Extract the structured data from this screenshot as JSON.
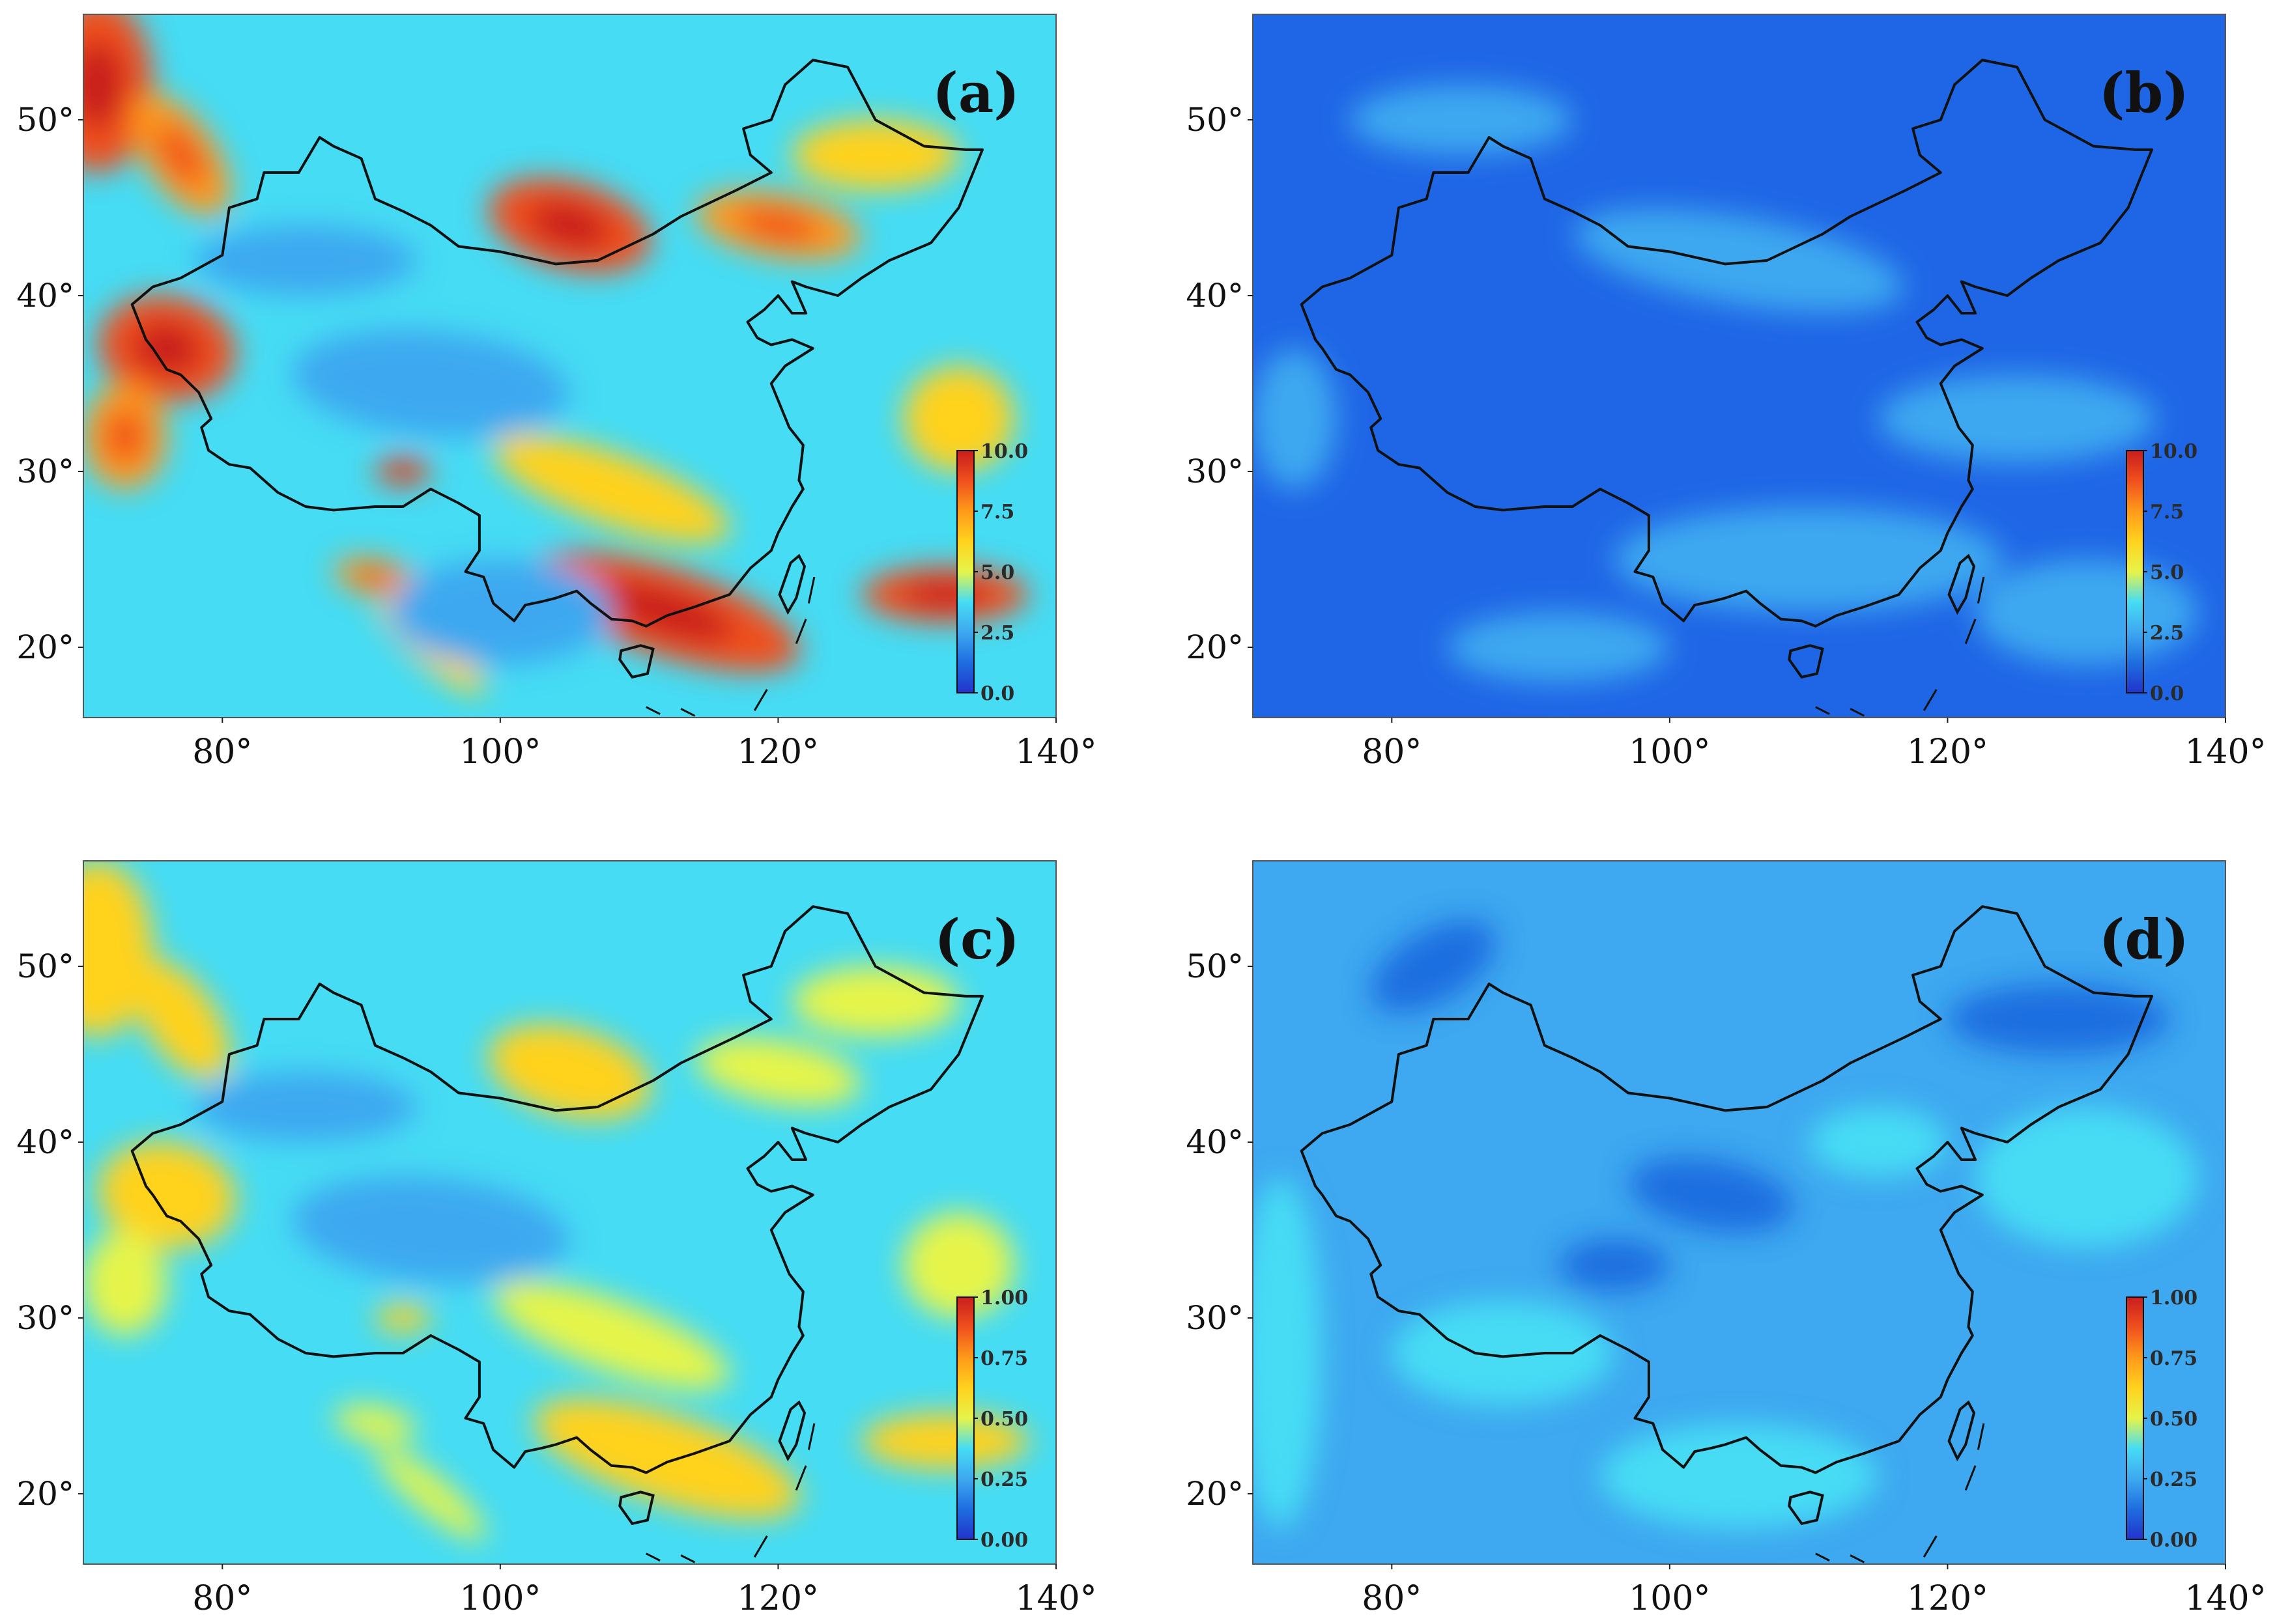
{
  "colors": {
    "scale": [
      "#2233cc",
      "#1e6ee0",
      "#3ea8f0",
      "#46dcf4",
      "#e6f44a",
      "#ffd21e",
      "#ff9a1a",
      "#f0501e",
      "#c81e1e"
    ],
    "background_low": "#1f66e6",
    "border": "#111111"
  },
  "axes": {
    "lon_range": [
      70,
      140
    ],
    "lat_range": [
      16,
      56
    ],
    "xticks": [
      {
        "value": 80,
        "label": "80°"
      },
      {
        "value": 100,
        "label": "100°"
      },
      {
        "value": 120,
        "label": "120°"
      },
      {
        "value": 140,
        "label": "140°"
      }
    ],
    "yticks": [
      {
        "value": 20,
        "label": "20°"
      },
      {
        "value": 30,
        "label": "30°"
      },
      {
        "value": 40,
        "label": "40°"
      },
      {
        "value": 50,
        "label": "50°"
      }
    ]
  },
  "panels": [
    {
      "label": "(a)",
      "base": "#46dcf4",
      "colorbar": {
        "range": [
          0,
          10
        ],
        "ticks": [
          "10.0",
          "7.5",
          "5.0",
          "2.5",
          "0.0"
        ]
      },
      "blobs": [
        {
          "lon": 71,
          "lat": 52,
          "rx": 4,
          "ry": 5,
          "level": 7,
          "angle": 0
        },
        {
          "lon": 77,
          "lat": 48,
          "rx": 2.5,
          "ry": 4,
          "level": 6,
          "angle": 35
        },
        {
          "lon": 76,
          "lat": 37,
          "rx": 5,
          "ry": 3,
          "level": 7,
          "angle": -10
        },
        {
          "lon": 73,
          "lat": 32,
          "rx": 3,
          "ry": 3,
          "level": 6,
          "angle": 0
        },
        {
          "lon": 105,
          "lat": 44,
          "rx": 6,
          "ry": 2.5,
          "level": 7,
          "angle": -15
        },
        {
          "lon": 120,
          "lat": 44,
          "rx": 6,
          "ry": 1.8,
          "level": 6,
          "angle": -10
        },
        {
          "lon": 127,
          "lat": 48,
          "rx": 6,
          "ry": 2,
          "level": 5,
          "angle": 0
        },
        {
          "lon": 108,
          "lat": 29,
          "rx": 9,
          "ry": 2,
          "level": 5,
          "angle": -20
        },
        {
          "lon": 112,
          "lat": 22,
          "rx": 10,
          "ry": 2.5,
          "level": 7,
          "angle": -18
        },
        {
          "lon": 132,
          "lat": 23,
          "rx": 6,
          "ry": 1.6,
          "level": 7,
          "angle": 0
        },
        {
          "lon": 91,
          "lat": 24,
          "rx": 3,
          "ry": 1,
          "level": 6,
          "angle": -10
        },
        {
          "lon": 93,
          "lat": 30,
          "rx": 2,
          "ry": 0.8,
          "level": 7,
          "angle": 0
        },
        {
          "lon": 95,
          "lat": 20,
          "rx": 5,
          "ry": 1,
          "level": 5,
          "angle": -40
        },
        {
          "lon": 133,
          "lat": 33,
          "rx": 4,
          "ry": 3,
          "level": 5,
          "angle": 0
        },
        {
          "lon": 86,
          "lat": 42,
          "rx": 8,
          "ry": 2,
          "level": 2,
          "angle": 0
        },
        {
          "lon": 95,
          "lat": 35,
          "rx": 10,
          "ry": 3,
          "level": 2,
          "angle": -5
        },
        {
          "lon": 100,
          "lat": 22,
          "rx": 8,
          "ry": 3,
          "level": 2,
          "angle": 0
        }
      ]
    },
    {
      "label": "(b)",
      "base": "#1f66e6",
      "colorbar": {
        "range": [
          0,
          10
        ],
        "ticks": [
          "10.0",
          "7.5",
          "5.0",
          "2.5",
          "0.0"
        ]
      },
      "blobs": [
        {
          "lon": 105,
          "lat": 42,
          "rx": 12,
          "ry": 2.5,
          "level": 2,
          "angle": -10
        },
        {
          "lon": 125,
          "lat": 33,
          "rx": 10,
          "ry": 2.5,
          "level": 2,
          "angle": 0
        },
        {
          "lon": 110,
          "lat": 25,
          "rx": 14,
          "ry": 3,
          "level": 2,
          "angle": 0
        },
        {
          "lon": 73,
          "lat": 33,
          "rx": 3,
          "ry": 4,
          "level": 2,
          "angle": 0
        },
        {
          "lon": 85,
          "lat": 50,
          "rx": 8,
          "ry": 2,
          "level": 2,
          "angle": 0
        },
        {
          "lon": 130,
          "lat": 22,
          "rx": 8,
          "ry": 3,
          "level": 2,
          "angle": 0
        },
        {
          "lon": 92,
          "lat": 20,
          "rx": 8,
          "ry": 2,
          "level": 2,
          "angle": 0
        }
      ]
    },
    {
      "label": "(c)",
      "base": "#46dcf4",
      "colorbar": {
        "range": [
          0,
          1
        ],
        "ticks": [
          "1.00",
          "0.75",
          "0.50",
          "0.25",
          "0.00"
        ]
      },
      "blobs": [
        {
          "lon": 71,
          "lat": 51,
          "rx": 4,
          "ry": 5,
          "level": 5,
          "angle": 0
        },
        {
          "lon": 77,
          "lat": 47,
          "rx": 2.5,
          "ry": 4,
          "level": 5,
          "angle": 35
        },
        {
          "lon": 76,
          "lat": 37,
          "rx": 5,
          "ry": 3,
          "level": 5,
          "angle": -10
        },
        {
          "lon": 73,
          "lat": 32,
          "rx": 3,
          "ry": 3,
          "level": 4,
          "angle": 0
        },
        {
          "lon": 105,
          "lat": 44,
          "rx": 6,
          "ry": 2.5,
          "level": 5,
          "angle": -15
        },
        {
          "lon": 120,
          "lat": 44,
          "rx": 6,
          "ry": 1.8,
          "level": 4,
          "angle": -10
        },
        {
          "lon": 127,
          "lat": 48,
          "rx": 6,
          "ry": 2,
          "level": 4,
          "angle": 0
        },
        {
          "lon": 108,
          "lat": 29,
          "rx": 9,
          "ry": 2,
          "level": 4,
          "angle": -20
        },
        {
          "lon": 112,
          "lat": 22,
          "rx": 10,
          "ry": 2.5,
          "level": 5,
          "angle": -18
        },
        {
          "lon": 132,
          "lat": 23,
          "rx": 6,
          "ry": 1.6,
          "level": 5,
          "angle": 0
        },
        {
          "lon": 91,
          "lat": 24,
          "rx": 3,
          "ry": 1,
          "level": 4,
          "angle": -10
        },
        {
          "lon": 93,
          "lat": 30,
          "rx": 2,
          "ry": 0.8,
          "level": 5,
          "angle": 0
        },
        {
          "lon": 95,
          "lat": 20,
          "rx": 5,
          "ry": 1,
          "level": 4,
          "angle": -40
        },
        {
          "lon": 133,
          "lat": 33,
          "rx": 4,
          "ry": 3,
          "level": 4,
          "angle": 0
        },
        {
          "lon": 86,
          "lat": 42,
          "rx": 8,
          "ry": 2,
          "level": 2,
          "angle": 0
        },
        {
          "lon": 95,
          "lat": 35,
          "rx": 10,
          "ry": 3,
          "level": 2,
          "angle": -5
        }
      ]
    },
    {
      "label": "(d)",
      "base": "#3ea8f0",
      "colorbar": {
        "range": [
          0,
          1
        ],
        "ticks": [
          "1.00",
          "0.75",
          "0.50",
          "0.25",
          "0.00"
        ]
      },
      "blobs": [
        {
          "lon": 72,
          "lat": 28,
          "rx": 3,
          "ry": 10,
          "level": 3,
          "angle": 0
        },
        {
          "lon": 88,
          "lat": 28,
          "rx": 8,
          "ry": 3,
          "level": 3,
          "angle": 0
        },
        {
          "lon": 105,
          "lat": 21,
          "rx": 10,
          "ry": 3,
          "level": 3,
          "angle": 0
        },
        {
          "lon": 130,
          "lat": 38,
          "rx": 8,
          "ry": 4,
          "level": 3,
          "angle": 0
        },
        {
          "lon": 115,
          "lat": 40,
          "rx": 5,
          "ry": 2,
          "level": 3,
          "angle": 0
        },
        {
          "lon": 128,
          "lat": 47,
          "rx": 8,
          "ry": 2,
          "level": 1,
          "angle": 0
        },
        {
          "lon": 83,
          "lat": 50,
          "rx": 5,
          "ry": 2,
          "level": 1,
          "angle": 30
        },
        {
          "lon": 103,
          "lat": 37,
          "rx": 6,
          "ry": 2,
          "level": 1,
          "angle": -10
        },
        {
          "lon": 96,
          "lat": 33,
          "rx": 4,
          "ry": 1.5,
          "level": 1,
          "angle": 0
        }
      ]
    }
  ],
  "china_outline": [
    [
      73.5,
      39.5
    ],
    [
      75,
      40.5
    ],
    [
      77,
      41
    ],
    [
      80,
      42.3
    ],
    [
      80.5,
      45
    ],
    [
      82.5,
      45.5
    ],
    [
      83,
      47
    ],
    [
      85.5,
      47
    ],
    [
      87,
      49
    ],
    [
      88,
      48.5
    ],
    [
      90,
      47.8
    ],
    [
      91,
      45.5
    ],
    [
      93,
      44.8
    ],
    [
      95,
      44
    ],
    [
      97,
      42.8
    ],
    [
      100,
      42.5
    ],
    [
      104,
      41.8
    ],
    [
      107,
      42
    ],
    [
      111,
      43.5
    ],
    [
      113,
      44.5
    ],
    [
      117,
      46
    ],
    [
      119.5,
      47
    ],
    [
      118,
      48
    ],
    [
      117.5,
      49.5
    ],
    [
      119.5,
      50
    ],
    [
      120.5,
      52
    ],
    [
      122.5,
      53.4
    ],
    [
      125,
      53
    ],
    [
      127,
      50
    ],
    [
      130.5,
      48.5
    ],
    [
      133.5,
      48.3
    ],
    [
      134.7,
      48.3
    ],
    [
      133,
      45
    ],
    [
      131,
      43
    ],
    [
      128,
      42
    ],
    [
      126,
      41
    ],
    [
      124.3,
      40
    ],
    [
      122,
      40.5
    ],
    [
      121,
      40.8
    ],
    [
      122,
      39
    ],
    [
      121,
      39
    ],
    [
      120,
      40
    ],
    [
      119,
      39.2
    ],
    [
      117.8,
      38.5
    ],
    [
      118.5,
      37.6
    ],
    [
      119.5,
      37.2
    ],
    [
      121,
      37.5
    ],
    [
      122.5,
      37
    ],
    [
      120.5,
      36
    ],
    [
      119.5,
      35
    ],
    [
      120.8,
      32.5
    ],
    [
      121.8,
      31.5
    ],
    [
      121.7,
      30.8
    ],
    [
      121.5,
      29.5
    ],
    [
      121.8,
      29
    ],
    [
      121,
      28
    ],
    [
      120,
      26.5
    ],
    [
      119.5,
      25.5
    ],
    [
      118,
      24.5
    ],
    [
      116.5,
      23
    ],
    [
      114,
      22.3
    ],
    [
      112,
      21.8
    ],
    [
      110.5,
      21.2
    ],
    [
      109.5,
      21.5
    ],
    [
      108,
      21.6
    ],
    [
      106.5,
      22.5
    ],
    [
      105.5,
      23.2
    ],
    [
      104,
      22.8
    ],
    [
      103,
      22.6
    ],
    [
      101.8,
      22.4
    ],
    [
      101,
      21.5
    ],
    [
      99.5,
      22.5
    ],
    [
      98.8,
      24
    ],
    [
      97.5,
      24.3
    ],
    [
      98.5,
      25.5
    ],
    [
      98.5,
      27.5
    ],
    [
      97,
      28.2
    ],
    [
      95,
      29
    ],
    [
      93,
      28
    ],
    [
      91,
      28
    ],
    [
      88,
      27.8
    ],
    [
      86,
      28
    ],
    [
      84,
      28.8
    ],
    [
      82,
      30.2
    ],
    [
      80.5,
      30.4
    ],
    [
      79,
      31.2
    ],
    [
      78.5,
      32.5
    ],
    [
      79.2,
      33
    ],
    [
      78.3,
      34.5
    ],
    [
      77,
      35.5
    ],
    [
      76,
      35.8
    ],
    [
      75,
      37
    ],
    [
      74.5,
      37.5
    ],
    [
      73.5,
      39.5
    ]
  ],
  "hainan": [
    [
      108.6,
      19.3
    ],
    [
      109.5,
      18.3
    ],
    [
      110.6,
      18.5
    ],
    [
      111,
      19.9
    ],
    [
      110.1,
      20.1
    ],
    [
      108.7,
      19.8
    ],
    [
      108.6,
      19.3
    ]
  ],
  "taiwan": [
    [
      120.1,
      23
    ],
    [
      120.7,
      22
    ],
    [
      121.3,
      22.8
    ],
    [
      121.9,
      24.6
    ],
    [
      121.5,
      25.2
    ],
    [
      120.9,
      24.8
    ],
    [
      120.1,
      23
    ]
  ]
}
